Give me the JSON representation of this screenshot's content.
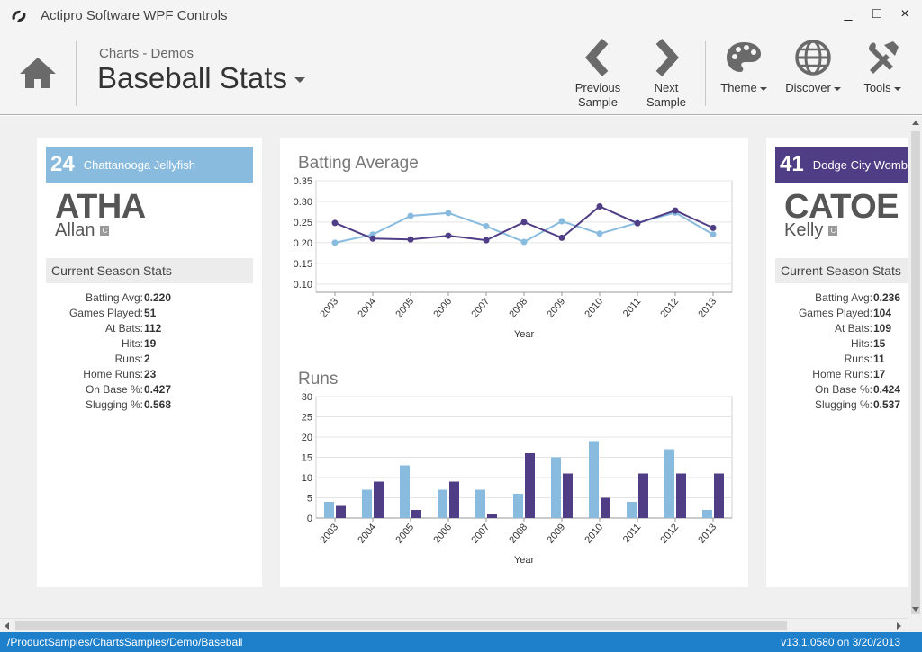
{
  "window": {
    "title": "Actipro Software WPF Controls",
    "controls": [
      "_",
      "□",
      "×"
    ]
  },
  "ribbon": {
    "breadcrumb": "Charts - Demos",
    "title": "Baseball Stats",
    "buttons": {
      "previous": {
        "line1": "Previous",
        "line2": "Sample"
      },
      "next": {
        "line1": "Next",
        "line2": "Sample"
      },
      "theme": "Theme",
      "discover": "Discover",
      "tools": "Tools"
    }
  },
  "colors": {
    "player1": "#89bbdf",
    "player2": "#4f3d85",
    "status": "#1e7fcb"
  },
  "players": [
    {
      "number": "24",
      "team": "Chattanooga Jellyfish",
      "last_name": "ATHA",
      "first_name": "Allan",
      "position": "C",
      "stats_header": "Current Season Stats",
      "stats": [
        {
          "label": "Batting Avg:",
          "value": "0.220"
        },
        {
          "label": "Games Played:",
          "value": "51"
        },
        {
          "label": "At Bats:",
          "value": "112"
        },
        {
          "label": "Hits:",
          "value": "19"
        },
        {
          "label": "Runs:",
          "value": "2"
        },
        {
          "label": "Home Runs:",
          "value": "23"
        },
        {
          "label": "On Base %:",
          "value": "0.427"
        },
        {
          "label": "Slugging %:",
          "value": "0.568"
        }
      ]
    },
    {
      "number": "41",
      "team": "Dodge City Wombats",
      "last_name": "CATOE",
      "first_name": "Kelly",
      "position": "C",
      "stats_header": "Current Season Stats",
      "stats": [
        {
          "label": "Batting Avg:",
          "value": "0.236"
        },
        {
          "label": "Games Played:",
          "value": "104"
        },
        {
          "label": "At Bats:",
          "value": "109"
        },
        {
          "label": "Hits:",
          "value": "15"
        },
        {
          "label": "Runs:",
          "value": "11"
        },
        {
          "label": "Home Runs:",
          "value": "17"
        },
        {
          "label": "On Base %:",
          "value": "0.424"
        },
        {
          "label": "Slugging %:",
          "value": "0.537"
        }
      ]
    }
  ],
  "chart_data": [
    {
      "type": "line",
      "title": "Batting Average",
      "xlabel": "Year",
      "ylabel": "",
      "ylim": [
        0.08,
        0.35
      ],
      "yticks": [
        "0.35",
        "0.30",
        "0.25",
        "0.20",
        "0.15",
        "0.10"
      ],
      "categories": [
        "2003",
        "2004",
        "2005",
        "2006",
        "2007",
        "2008",
        "2009",
        "2010",
        "2011",
        "2012",
        "2013"
      ],
      "series": [
        {
          "values": [
            0.2,
            0.22,
            0.265,
            0.272,
            0.24,
            0.202,
            0.252,
            0.222,
            0.248,
            0.273,
            0.22
          ]
        },
        {
          "values": [
            0.248,
            0.21,
            0.208,
            0.217,
            0.206,
            0.25,
            0.212,
            0.288,
            0.247,
            0.278,
            0.236
          ]
        }
      ],
      "grid": true
    },
    {
      "type": "bar",
      "title": "Runs",
      "xlabel": "Year",
      "ylabel": "",
      "ylim": [
        0,
        30
      ],
      "yticks": [
        "30",
        "25",
        "20",
        "15",
        "10",
        "5",
        "0"
      ],
      "categories": [
        "2003",
        "2004",
        "2005",
        "2006",
        "2007",
        "2008",
        "2009",
        "2010",
        "2011",
        "2012",
        "2013"
      ],
      "series": [
        {
          "values": [
            4,
            7,
            13,
            7,
            7,
            6,
            15,
            19,
            4,
            17,
            2
          ]
        },
        {
          "values": [
            3,
            9,
            2,
            9,
            1,
            16,
            11,
            5,
            11,
            11,
            11
          ]
        }
      ],
      "grid": true
    }
  ],
  "status": {
    "path": "/ProductSamples/ChartsSamples/Demo/Baseball",
    "version": "v13.1.0580 on 3/20/2013"
  }
}
